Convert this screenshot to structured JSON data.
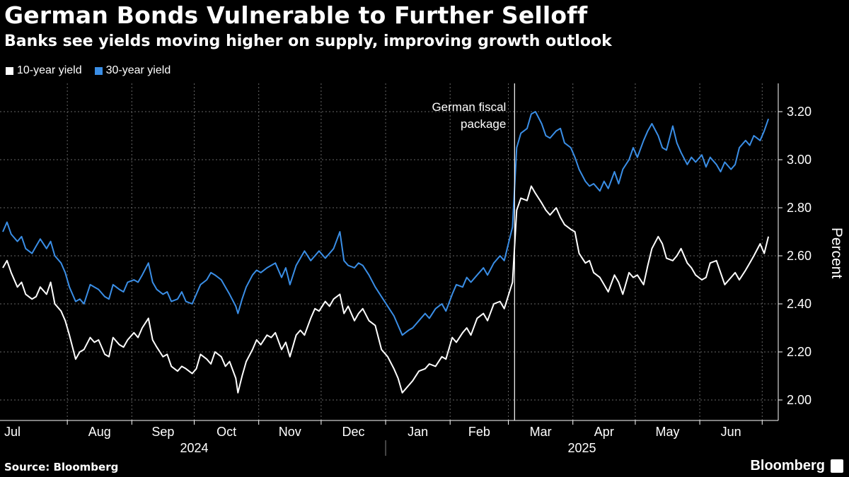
{
  "header": {
    "title": "German Bonds Vulnerable to Further Selloff",
    "subtitle": "Banks see yields moving higher on supply, improving growth outlook"
  },
  "footer": {
    "source": "Source: Bloomberg",
    "brand": "Bloomberg"
  },
  "colors": {
    "background": "#000000",
    "series_10y": "#ffffff",
    "series_30y": "#3a8ee6",
    "grid": "#555555"
  },
  "chart_data": {
    "type": "line",
    "title": "German Bonds Vulnerable to Further Selloff",
    "subtitle": "Banks see yields moving higher on supply, improving growth outlook",
    "ylabel": "Percent",
    "ylim": [
      1.95,
      3.3
    ],
    "y_ticks": [
      "2.00",
      "2.20",
      "2.40",
      "2.60",
      "2.80",
      "3.00",
      "3.20"
    ],
    "y_axis_position": "right",
    "grid": true,
    "legend_position": "top-left",
    "x_range": [
      "2024-07-01",
      "2025-07-06"
    ],
    "months": [
      "Jul",
      "Aug",
      "Sep",
      "Oct",
      "Nov",
      "Dec",
      "Jan",
      "Feb",
      "Mar",
      "Apr",
      "May",
      "Jun"
    ],
    "years": [
      "2024",
      "2025"
    ],
    "annotation": {
      "text": [
        "German fiscal",
        "package"
      ],
      "date": "2025-03-05"
    },
    "series": [
      {
        "name": "10-year yield",
        "color": "#ffffff",
        "points": [
          [
            "2024-07-01",
            2.55
          ],
          [
            "2024-07-03",
            2.58
          ],
          [
            "2024-07-05",
            2.53
          ],
          [
            "2024-07-08",
            2.47
          ],
          [
            "2024-07-10",
            2.49
          ],
          [
            "2024-07-12",
            2.44
          ],
          [
            "2024-07-15",
            2.42
          ],
          [
            "2024-07-17",
            2.43
          ],
          [
            "2024-07-19",
            2.47
          ],
          [
            "2024-07-22",
            2.44
          ],
          [
            "2024-07-24",
            2.49
          ],
          [
            "2024-07-26",
            2.4
          ],
          [
            "2024-07-29",
            2.37
          ],
          [
            "2024-07-31",
            2.33
          ],
          [
            "2024-08-02",
            2.27
          ],
          [
            "2024-08-05",
            2.17
          ],
          [
            "2024-08-07",
            2.2
          ],
          [
            "2024-08-09",
            2.21
          ],
          [
            "2024-08-12",
            2.26
          ],
          [
            "2024-08-14",
            2.24
          ],
          [
            "2024-08-16",
            2.25
          ],
          [
            "2024-08-19",
            2.19
          ],
          [
            "2024-08-21",
            2.18
          ],
          [
            "2024-08-23",
            2.26
          ],
          [
            "2024-08-26",
            2.23
          ],
          [
            "2024-08-28",
            2.22
          ],
          [
            "2024-08-30",
            2.25
          ],
          [
            "2024-09-02",
            2.28
          ],
          [
            "2024-09-04",
            2.26
          ],
          [
            "2024-09-06",
            2.3
          ],
          [
            "2024-09-09",
            2.34
          ],
          [
            "2024-09-11",
            2.25
          ],
          [
            "2024-09-13",
            2.22
          ],
          [
            "2024-09-16",
            2.18
          ],
          [
            "2024-09-18",
            2.19
          ],
          [
            "2024-09-20",
            2.14
          ],
          [
            "2024-09-23",
            2.12
          ],
          [
            "2024-09-25",
            2.14
          ],
          [
            "2024-09-27",
            2.13
          ],
          [
            "2024-09-30",
            2.11
          ],
          [
            "2024-10-02",
            2.13
          ],
          [
            "2024-10-04",
            2.19
          ],
          [
            "2024-10-07",
            2.17
          ],
          [
            "2024-10-09",
            2.15
          ],
          [
            "2024-10-11",
            2.2
          ],
          [
            "2024-10-14",
            2.18
          ],
          [
            "2024-10-16",
            2.14
          ],
          [
            "2024-10-18",
            2.16
          ],
          [
            "2024-10-21",
            2.09
          ],
          [
            "2024-10-22",
            2.03
          ],
          [
            "2024-10-24",
            2.1
          ],
          [
            "2024-10-26",
            2.16
          ],
          [
            "2024-10-29",
            2.21
          ],
          [
            "2024-10-31",
            2.25
          ],
          [
            "2024-11-02",
            2.23
          ],
          [
            "2024-11-05",
            2.27
          ],
          [
            "2024-11-07",
            2.26
          ],
          [
            "2024-11-09",
            2.28
          ],
          [
            "2024-11-12",
            2.21
          ],
          [
            "2024-11-14",
            2.24
          ],
          [
            "2024-11-16",
            2.18
          ],
          [
            "2024-11-19",
            2.27
          ],
          [
            "2024-11-21",
            2.29
          ],
          [
            "2024-11-23",
            2.27
          ],
          [
            "2024-11-26",
            2.34
          ],
          [
            "2024-11-28",
            2.38
          ],
          [
            "2024-11-30",
            2.37
          ],
          [
            "2024-12-03",
            2.41
          ],
          [
            "2024-12-05",
            2.39
          ],
          [
            "2024-12-07",
            2.42
          ],
          [
            "2024-12-10",
            2.44
          ],
          [
            "2024-12-12",
            2.36
          ],
          [
            "2024-12-14",
            2.39
          ],
          [
            "2024-12-17",
            2.33
          ],
          [
            "2024-12-19",
            2.36
          ],
          [
            "2024-12-21",
            2.38
          ],
          [
            "2024-12-24",
            2.33
          ],
          [
            "2024-12-27",
            2.31
          ],
          [
            "2024-12-30",
            2.21
          ],
          [
            "2025-01-02",
            2.18
          ],
          [
            "2025-01-05",
            2.13
          ],
          [
            "2025-01-07",
            2.09
          ],
          [
            "2025-01-09",
            2.03
          ],
          [
            "2025-01-12",
            2.06
          ],
          [
            "2025-01-14",
            2.08
          ],
          [
            "2025-01-17",
            2.12
          ],
          [
            "2025-01-20",
            2.13
          ],
          [
            "2025-01-22",
            2.15
          ],
          [
            "2025-01-25",
            2.14
          ],
          [
            "2025-01-28",
            2.18
          ],
          [
            "2025-01-30",
            2.17
          ],
          [
            "2025-02-02",
            2.26
          ],
          [
            "2025-02-04",
            2.24
          ],
          [
            "2025-02-07",
            2.28
          ],
          [
            "2025-02-09",
            2.3
          ],
          [
            "2025-02-11",
            2.27
          ],
          [
            "2025-02-14",
            2.34
          ],
          [
            "2025-02-17",
            2.36
          ],
          [
            "2025-02-19",
            2.33
          ],
          [
            "2025-02-22",
            2.4
          ],
          [
            "2025-02-25",
            2.41
          ],
          [
            "2025-02-27",
            2.38
          ]
        ]
      },
      {
        "name": "30-year yield",
        "color": "#3a8ee6",
        "points": [
          [
            "2024-07-01",
            2.7
          ],
          [
            "2024-07-03",
            2.74
          ],
          [
            "2024-07-05",
            2.69
          ],
          [
            "2024-07-08",
            2.66
          ],
          [
            "2024-07-10",
            2.68
          ],
          [
            "2024-07-12",
            2.63
          ],
          [
            "2024-07-15",
            2.61
          ],
          [
            "2024-07-17",
            2.64
          ],
          [
            "2024-07-19",
            2.67
          ],
          [
            "2024-07-22",
            2.63
          ],
          [
            "2024-07-24",
            2.66
          ],
          [
            "2024-07-26",
            2.6
          ],
          [
            "2024-07-29",
            2.57
          ],
          [
            "2024-07-31",
            2.53
          ],
          [
            "2024-08-02",
            2.47
          ],
          [
            "2024-08-05",
            2.41
          ],
          [
            "2024-08-07",
            2.42
          ],
          [
            "2024-08-09",
            2.4
          ],
          [
            "2024-08-12",
            2.48
          ],
          [
            "2024-08-14",
            2.47
          ],
          [
            "2024-08-16",
            2.46
          ],
          [
            "2024-08-19",
            2.43
          ],
          [
            "2024-08-21",
            2.42
          ],
          [
            "2024-08-23",
            2.48
          ],
          [
            "2024-08-26",
            2.46
          ],
          [
            "2024-08-28",
            2.45
          ],
          [
            "2024-08-30",
            2.49
          ],
          [
            "2024-09-02",
            2.5
          ],
          [
            "2024-09-04",
            2.49
          ],
          [
            "2024-09-06",
            2.52
          ],
          [
            "2024-09-09",
            2.57
          ],
          [
            "2024-09-11",
            2.49
          ],
          [
            "2024-09-13",
            2.46
          ],
          [
            "2024-09-16",
            2.44
          ],
          [
            "2024-09-18",
            2.45
          ],
          [
            "2024-09-20",
            2.41
          ],
          [
            "2024-09-23",
            2.42
          ],
          [
            "2024-09-25",
            2.45
          ],
          [
            "2024-09-27",
            2.41
          ],
          [
            "2024-09-30",
            2.4
          ],
          [
            "2024-10-02",
            2.44
          ],
          [
            "2024-10-04",
            2.48
          ],
          [
            "2024-10-07",
            2.5
          ],
          [
            "2024-10-09",
            2.53
          ],
          [
            "2024-10-11",
            2.52
          ],
          [
            "2024-10-14",
            2.5
          ],
          [
            "2024-10-16",
            2.47
          ],
          [
            "2024-10-18",
            2.44
          ],
          [
            "2024-10-21",
            2.39
          ],
          [
            "2024-10-22",
            2.36
          ],
          [
            "2024-10-24",
            2.42
          ],
          [
            "2024-10-26",
            2.47
          ],
          [
            "2024-10-29",
            2.52
          ],
          [
            "2024-10-31",
            2.54
          ],
          [
            "2024-11-02",
            2.53
          ],
          [
            "2024-11-05",
            2.55
          ],
          [
            "2024-11-07",
            2.56
          ],
          [
            "2024-11-09",
            2.57
          ],
          [
            "2024-11-12",
            2.51
          ],
          [
            "2024-11-14",
            2.55
          ],
          [
            "2024-11-16",
            2.48
          ],
          [
            "2024-11-19",
            2.56
          ],
          [
            "2024-11-21",
            2.59
          ],
          [
            "2024-11-23",
            2.62
          ],
          [
            "2024-11-26",
            2.58
          ],
          [
            "2024-11-28",
            2.6
          ],
          [
            "2024-11-30",
            2.62
          ],
          [
            "2024-12-03",
            2.59
          ],
          [
            "2024-12-05",
            2.61
          ],
          [
            "2024-12-07",
            2.63
          ],
          [
            "2024-12-10",
            2.7
          ],
          [
            "2024-12-12",
            2.58
          ],
          [
            "2024-12-14",
            2.56
          ],
          [
            "2024-12-17",
            2.55
          ],
          [
            "2024-12-19",
            2.57
          ],
          [
            "2024-12-21",
            2.56
          ],
          [
            "2024-12-24",
            2.52
          ],
          [
            "2024-12-27",
            2.47
          ],
          [
            "2024-12-30",
            2.43
          ],
          [
            "2025-01-02",
            2.39
          ],
          [
            "2025-01-05",
            2.35
          ],
          [
            "2025-01-07",
            2.31
          ],
          [
            "2025-01-09",
            2.27
          ],
          [
            "2025-01-12",
            2.29
          ],
          [
            "2025-01-14",
            2.3
          ],
          [
            "2025-01-17",
            2.33
          ],
          [
            "2025-01-20",
            2.36
          ],
          [
            "2025-01-22",
            2.34
          ],
          [
            "2025-01-25",
            2.38
          ],
          [
            "2025-01-28",
            2.4
          ],
          [
            "2025-01-30",
            2.37
          ],
          [
            "2025-02-02",
            2.44
          ],
          [
            "2025-02-04",
            2.48
          ],
          [
            "2025-02-07",
            2.47
          ],
          [
            "2025-02-09",
            2.51
          ],
          [
            "2025-02-11",
            2.49
          ],
          [
            "2025-02-14",
            2.52
          ],
          [
            "2025-02-17",
            2.55
          ],
          [
            "2025-02-19",
            2.52
          ],
          [
            "2025-02-22",
            2.57
          ],
          [
            "2025-02-25",
            2.6
          ],
          [
            "2025-02-27",
            2.58
          ]
        ]
      }
    ]
  }
}
